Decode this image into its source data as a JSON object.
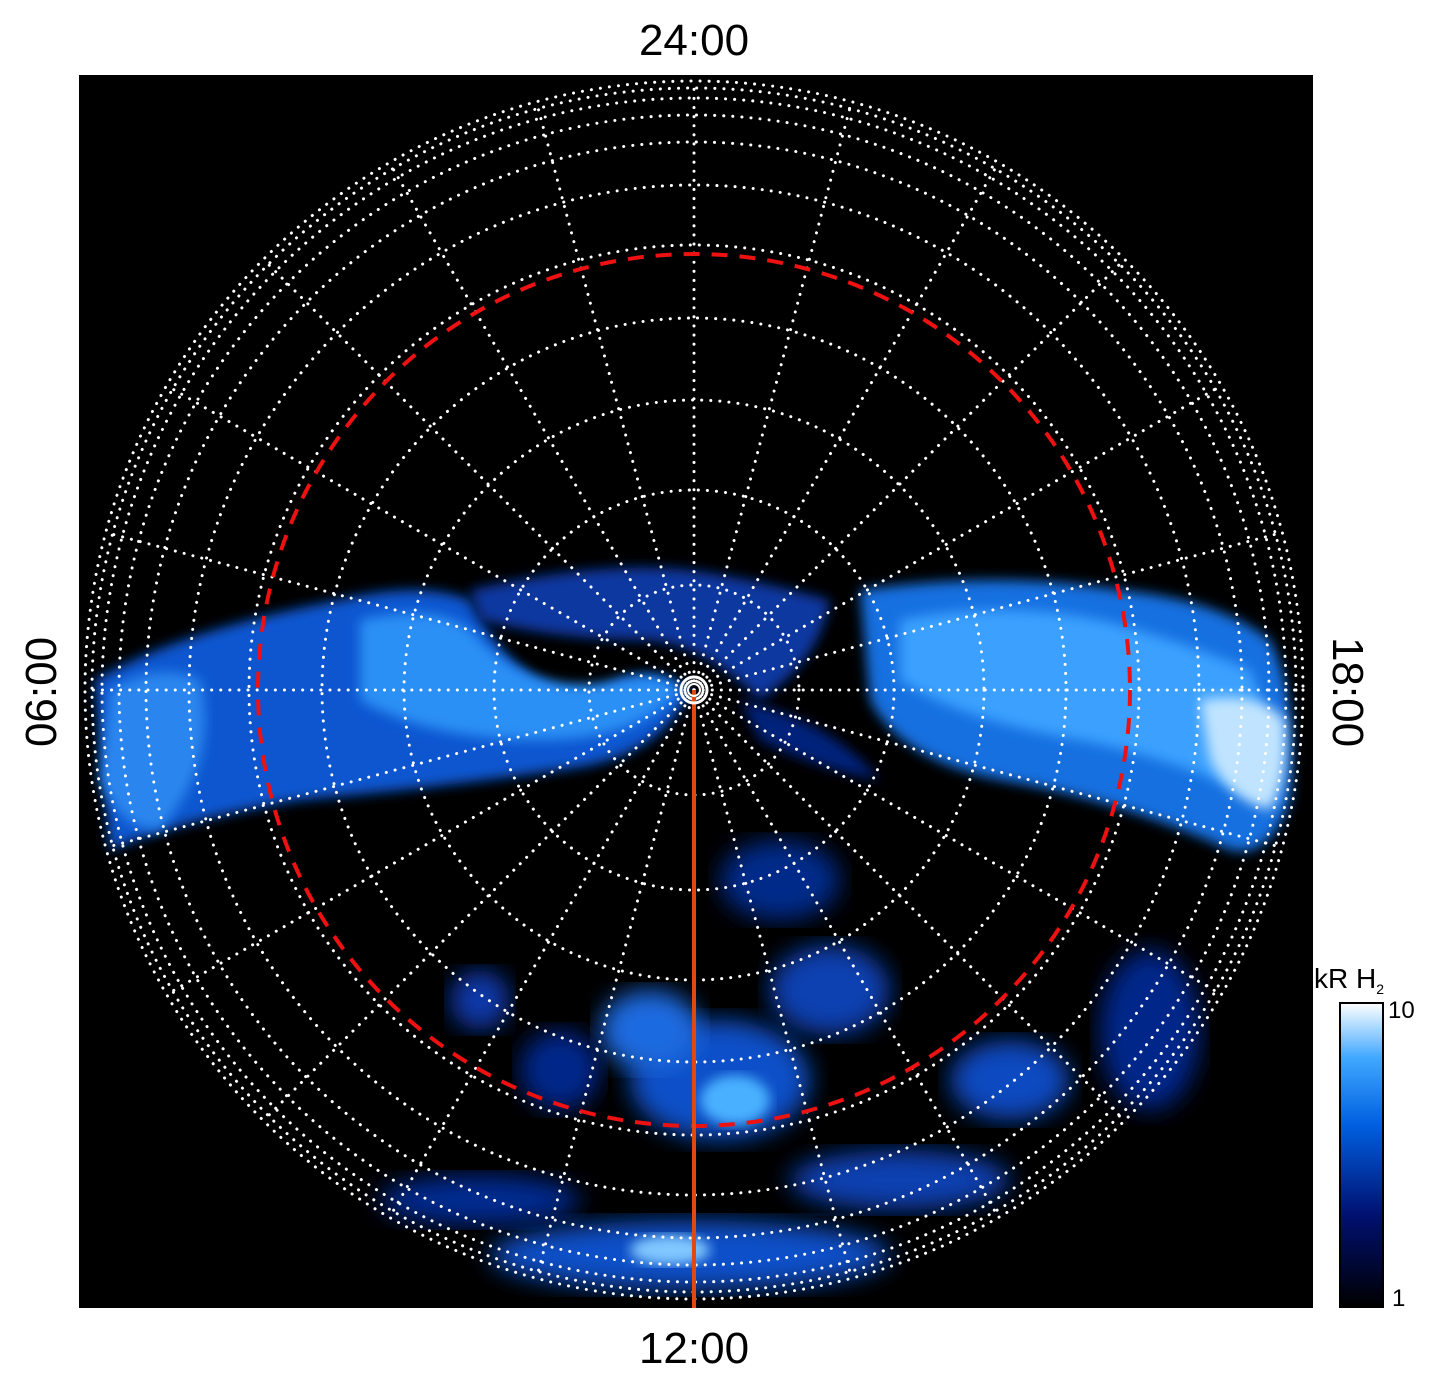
{
  "labels": {
    "top": "24:00",
    "bottom": "12:00",
    "left": "06:00",
    "right": "18:00"
  },
  "colorbar": {
    "title": "kR H",
    "title_sub": "2",
    "ticks": [
      "10",
      "1"
    ]
  }
}
